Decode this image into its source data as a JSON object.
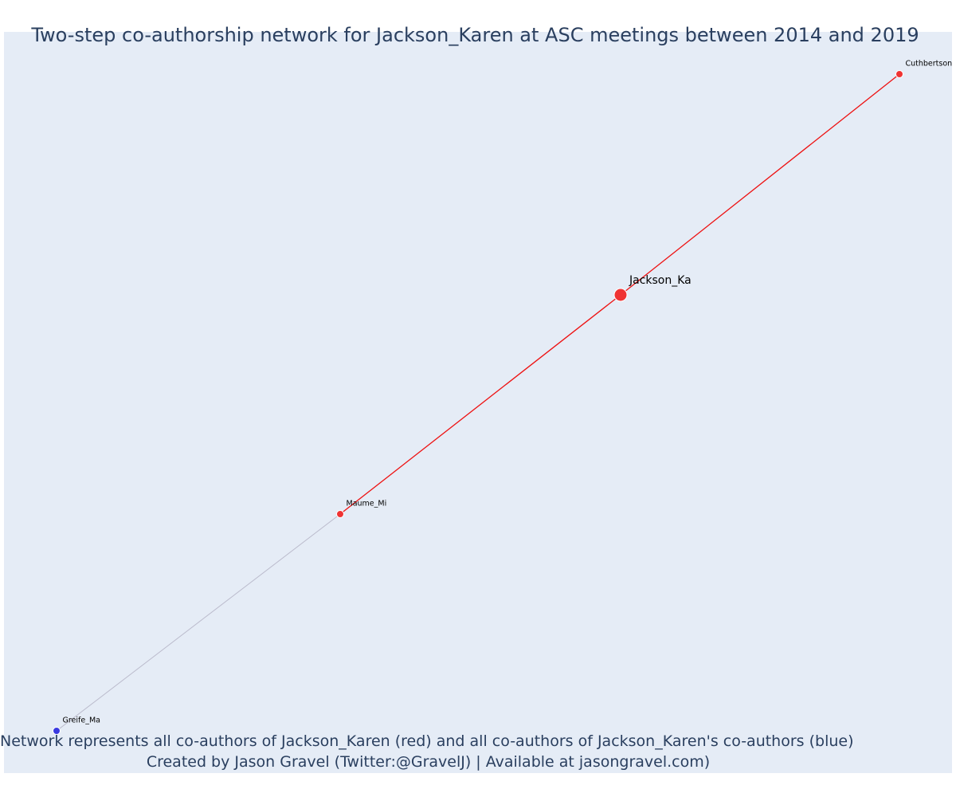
{
  "title": "Two-step co-authorship network for Jackson_Karen at ASC meetings between 2014 and 2019",
  "footer": {
    "line1": "Network represents all co-authors of Jackson_Karen (red) and all co-authors of Jackson_Karen's co-authors (blue)",
    "line2": "Created by Jason Gravel (Twitter:@GravelJ) | Available at jasongravel.com)"
  },
  "colors": {
    "background": "#e5ecf6",
    "first_degree": "#ef3333",
    "second_degree": "#3a3ae0",
    "first_degree_edge": "#ee1111",
    "second_degree_edge": "#bbbbcc"
  },
  "nodes": [
    {
      "id": "Cuthbertson",
      "label": "Cuthbertson",
      "group": "co-author"
    },
    {
      "id": "Jackson_Ka",
      "label": "Jackson_Ka",
      "group": "focal"
    },
    {
      "id": "Maume_Mi",
      "label": "Maume_Mi",
      "group": "co-author"
    },
    {
      "id": "Greife_Ma",
      "label": "Greife_Ma",
      "group": "co-author-of-co-author"
    }
  ],
  "edges": [
    {
      "source": "Jackson_Ka",
      "target": "Cuthbertson",
      "type": "first-degree"
    },
    {
      "source": "Jackson_Ka",
      "target": "Maume_Mi",
      "type": "first-degree"
    },
    {
      "source": "Maume_Mi",
      "target": "Greife_Ma",
      "type": "second-degree"
    }
  ]
}
